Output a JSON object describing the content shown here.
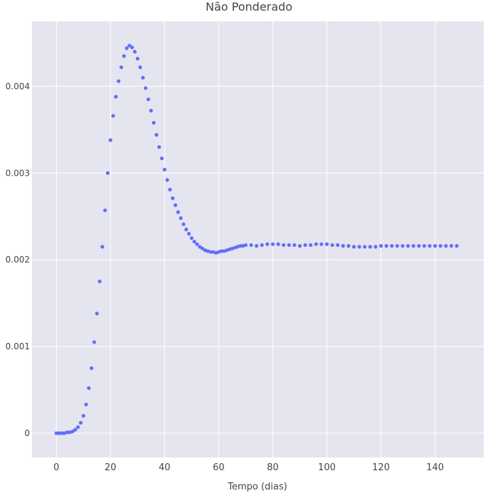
{
  "chart_data": {
    "type": "scatter",
    "title": "Não Ponderado",
    "xlabel": "Tempo (dias)",
    "ylabel": "",
    "xlim": [
      -9,
      158
    ],
    "ylim": [
      -0.00028,
      0.00475
    ],
    "x_ticks": [
      0,
      20,
      40,
      60,
      80,
      100,
      120,
      140
    ],
    "x_tick_labels": [
      "0",
      "20",
      "40",
      "60",
      "80",
      "100",
      "120",
      "140"
    ],
    "y_ticks": [
      0,
      0.001,
      0.002,
      0.003,
      0.004
    ],
    "y_tick_labels": [
      "0",
      "0.001",
      "0.002",
      "0.003",
      "0.004"
    ],
    "grid": true,
    "marker_color": "#636efa",
    "plot_background": "#e5e5f0",
    "series": [
      {
        "x": [
          0,
          1,
          2,
          3,
          4,
          5,
          6,
          7,
          8,
          9,
          10,
          11,
          12,
          13,
          14,
          15,
          16,
          17,
          18,
          19,
          20,
          21,
          22,
          23,
          24,
          25,
          26,
          27,
          28,
          29,
          30,
          31,
          32,
          33,
          34,
          35,
          36,
          37,
          38,
          39,
          40,
          41,
          42,
          43,
          44,
          45,
          46,
          47,
          48,
          49,
          50,
          51,
          52,
          53,
          54,
          55,
          56,
          57,
          58,
          59,
          60,
          61,
          62,
          63,
          64,
          65,
          66,
          67,
          68,
          69,
          70,
          72,
          74,
          76,
          78,
          80,
          82,
          84,
          86,
          88,
          90,
          92,
          94,
          96,
          98,
          100,
          102,
          104,
          106,
          108,
          110,
          112,
          114,
          116,
          118,
          120,
          122,
          124,
          126,
          128,
          130,
          132,
          134,
          136,
          138,
          140,
          142,
          144,
          146,
          148
        ],
        "y": [
          0,
          0,
          0,
          0,
          1e-05,
          1e-05,
          2e-05,
          4e-05,
          7e-05,
          0.00012,
          0.0002,
          0.00033,
          0.00052,
          0.00075,
          0.00105,
          0.00138,
          0.00175,
          0.00215,
          0.00257,
          0.003,
          0.00338,
          0.00366,
          0.00388,
          0.00406,
          0.00422,
          0.00435,
          0.00444,
          0.00447,
          0.00445,
          0.0044,
          0.00432,
          0.00422,
          0.0041,
          0.00398,
          0.00385,
          0.00372,
          0.00358,
          0.00344,
          0.0033,
          0.00317,
          0.00304,
          0.00292,
          0.00281,
          0.00271,
          0.00263,
          0.00255,
          0.00248,
          0.00241,
          0.00235,
          0.0023,
          0.00225,
          0.00221,
          0.00218,
          0.00215,
          0.00213,
          0.00211,
          0.0021,
          0.00209,
          0.00209,
          0.00208,
          0.00209,
          0.0021,
          0.0021,
          0.00211,
          0.00212,
          0.00213,
          0.00214,
          0.00215,
          0.00216,
          0.00216,
          0.00217,
          0.00217,
          0.00216,
          0.00217,
          0.00218,
          0.00218,
          0.00218,
          0.00217,
          0.00217,
          0.00217,
          0.00216,
          0.00217,
          0.00217,
          0.00218,
          0.00218,
          0.00218,
          0.00217,
          0.00217,
          0.00216,
          0.00216,
          0.00215,
          0.00215,
          0.00215,
          0.00215,
          0.00215,
          0.00216,
          0.00216,
          0.00216,
          0.00216,
          0.00216,
          0.00216,
          0.00216,
          0.00216,
          0.00216,
          0.00216,
          0.00216,
          0.00216,
          0.00216,
          0.00216,
          0.00216
        ]
      }
    ]
  }
}
